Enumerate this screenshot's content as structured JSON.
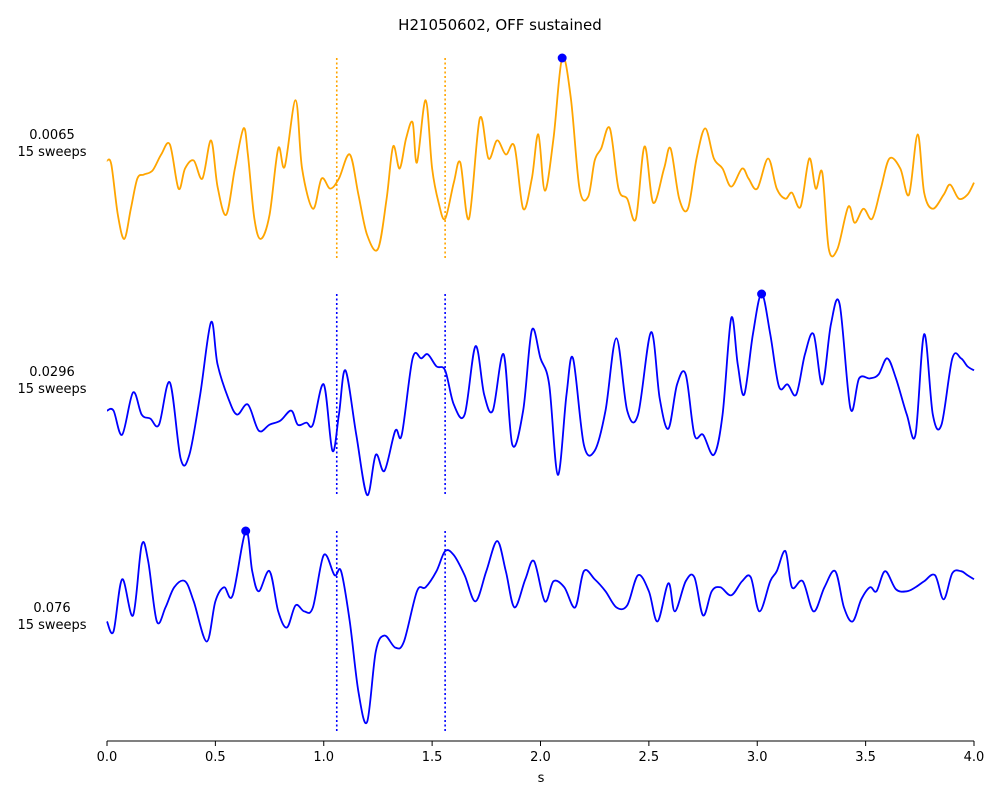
{
  "chart_data": {
    "type": "line",
    "title": "H21050602, OFF sustained",
    "xlabel": "s",
    "xlim": [
      0.0,
      4.0
    ],
    "x_ticks": [
      "0.0",
      "0.5",
      "1.0",
      "1.5",
      "2.0",
      "2.5",
      "3.0",
      "3.5",
      "4.0"
    ],
    "markers": [
      1.06,
      1.56
    ],
    "grid": false,
    "legend": "none",
    "series": [
      {
        "label_value": "0.0065",
        "label_sweeps": "15 sweeps",
        "color": "#ffa500",
        "peak": {
          "x": 2.1,
          "y": 1.0
        },
        "points": [
          [
            0.0,
            0.49
          ],
          [
            0.02,
            0.47
          ],
          [
            0.05,
            0.22
          ],
          [
            0.08,
            0.1
          ],
          [
            0.11,
            0.25
          ],
          [
            0.14,
            0.4
          ],
          [
            0.17,
            0.42
          ],
          [
            0.21,
            0.44
          ],
          [
            0.25,
            0.52
          ],
          [
            0.29,
            0.57
          ],
          [
            0.33,
            0.35
          ],
          [
            0.36,
            0.45
          ],
          [
            0.4,
            0.49
          ],
          [
            0.44,
            0.4
          ],
          [
            0.48,
            0.59
          ],
          [
            0.51,
            0.36
          ],
          [
            0.55,
            0.22
          ],
          [
            0.59,
            0.45
          ],
          [
            0.63,
            0.65
          ],
          [
            0.65,
            0.52
          ],
          [
            0.68,
            0.2
          ],
          [
            0.71,
            0.1
          ],
          [
            0.75,
            0.22
          ],
          [
            0.79,
            0.55
          ],
          [
            0.82,
            0.46
          ],
          [
            0.87,
            0.79
          ],
          [
            0.9,
            0.45
          ],
          [
            0.95,
            0.25
          ],
          [
            0.99,
            0.4
          ],
          [
            1.03,
            0.35
          ],
          [
            1.07,
            0.4
          ],
          [
            1.12,
            0.52
          ],
          [
            1.16,
            0.32
          ],
          [
            1.2,
            0.12
          ],
          [
            1.25,
            0.05
          ],
          [
            1.29,
            0.3
          ],
          [
            1.32,
            0.56
          ],
          [
            1.35,
            0.45
          ],
          [
            1.38,
            0.6
          ],
          [
            1.41,
            0.68
          ],
          [
            1.43,
            0.48
          ],
          [
            1.47,
            0.79
          ],
          [
            1.5,
            0.45
          ],
          [
            1.53,
            0.28
          ],
          [
            1.56,
            0.2
          ],
          [
            1.6,
            0.38
          ],
          [
            1.63,
            0.48
          ],
          [
            1.67,
            0.2
          ],
          [
            1.72,
            0.7
          ],
          [
            1.76,
            0.5
          ],
          [
            1.8,
            0.59
          ],
          [
            1.84,
            0.52
          ],
          [
            1.88,
            0.56
          ],
          [
            1.92,
            0.25
          ],
          [
            1.96,
            0.4
          ],
          [
            1.99,
            0.62
          ],
          [
            2.02,
            0.34
          ],
          [
            2.06,
            0.6
          ],
          [
            2.1,
            1.0
          ],
          [
            2.14,
            0.8
          ],
          [
            2.18,
            0.35
          ],
          [
            2.22,
            0.31
          ],
          [
            2.25,
            0.49
          ],
          [
            2.28,
            0.55
          ],
          [
            2.32,
            0.65
          ],
          [
            2.36,
            0.35
          ],
          [
            2.4,
            0.3
          ],
          [
            2.44,
            0.2
          ],
          [
            2.48,
            0.56
          ],
          [
            2.52,
            0.28
          ],
          [
            2.57,
            0.45
          ],
          [
            2.6,
            0.55
          ],
          [
            2.64,
            0.3
          ],
          [
            2.68,
            0.25
          ],
          [
            2.72,
            0.5
          ],
          [
            2.76,
            0.65
          ],
          [
            2.8,
            0.5
          ],
          [
            2.84,
            0.45
          ],
          [
            2.88,
            0.36
          ],
          [
            2.93,
            0.45
          ],
          [
            2.96,
            0.4
          ],
          [
            3.0,
            0.35
          ],
          [
            3.05,
            0.5
          ],
          [
            3.09,
            0.35
          ],
          [
            3.13,
            0.3
          ],
          [
            3.16,
            0.33
          ],
          [
            3.2,
            0.26
          ],
          [
            3.24,
            0.5
          ],
          [
            3.27,
            0.35
          ],
          [
            3.3,
            0.43
          ],
          [
            3.33,
            0.05
          ],
          [
            3.37,
            0.05
          ],
          [
            3.42,
            0.26
          ],
          [
            3.45,
            0.18
          ],
          [
            3.49,
            0.25
          ],
          [
            3.53,
            0.2
          ],
          [
            3.57,
            0.35
          ],
          [
            3.61,
            0.5
          ],
          [
            3.66,
            0.45
          ],
          [
            3.7,
            0.32
          ],
          [
            3.74,
            0.62
          ],
          [
            3.77,
            0.33
          ],
          [
            3.81,
            0.25
          ],
          [
            3.86,
            0.32
          ],
          [
            3.89,
            0.37
          ],
          [
            3.93,
            0.3
          ],
          [
            3.97,
            0.32
          ],
          [
            4.0,
            0.38
          ]
        ]
      },
      {
        "label_value": "0.0296",
        "label_sweeps": "15 sweeps",
        "color": "#0000ff",
        "peak": {
          "x": 3.02,
          "y": 1.0
        },
        "points": [
          [
            0.0,
            0.42
          ],
          [
            0.03,
            0.42
          ],
          [
            0.07,
            0.3
          ],
          [
            0.12,
            0.51
          ],
          [
            0.16,
            0.4
          ],
          [
            0.2,
            0.38
          ],
          [
            0.24,
            0.35
          ],
          [
            0.29,
            0.56
          ],
          [
            0.34,
            0.18
          ],
          [
            0.38,
            0.2
          ],
          [
            0.43,
            0.5
          ],
          [
            0.48,
            0.86
          ],
          [
            0.51,
            0.65
          ],
          [
            0.56,
            0.48
          ],
          [
            0.6,
            0.4
          ],
          [
            0.65,
            0.45
          ],
          [
            0.7,
            0.32
          ],
          [
            0.75,
            0.35
          ],
          [
            0.8,
            0.37
          ],
          [
            0.85,
            0.42
          ],
          [
            0.88,
            0.35
          ],
          [
            0.92,
            0.36
          ],
          [
            0.95,
            0.35
          ],
          [
            1.0,
            0.55
          ],
          [
            1.04,
            0.22
          ],
          [
            1.07,
            0.4
          ],
          [
            1.1,
            0.62
          ],
          [
            1.15,
            0.3
          ],
          [
            1.2,
            0.0
          ],
          [
            1.24,
            0.2
          ],
          [
            1.28,
            0.12
          ],
          [
            1.33,
            0.32
          ],
          [
            1.36,
            0.3
          ],
          [
            1.41,
            0.68
          ],
          [
            1.45,
            0.68
          ],
          [
            1.48,
            0.7
          ],
          [
            1.52,
            0.64
          ],
          [
            1.56,
            0.62
          ],
          [
            1.6,
            0.45
          ],
          [
            1.65,
            0.4
          ],
          [
            1.7,
            0.74
          ],
          [
            1.74,
            0.5
          ],
          [
            1.78,
            0.42
          ],
          [
            1.83,
            0.7
          ],
          [
            1.87,
            0.25
          ],
          [
            1.92,
            0.42
          ],
          [
            1.96,
            0.82
          ],
          [
            2.0,
            0.68
          ],
          [
            2.04,
            0.55
          ],
          [
            2.08,
            0.1
          ],
          [
            2.12,
            0.5
          ],
          [
            2.15,
            0.68
          ],
          [
            2.2,
            0.25
          ],
          [
            2.25,
            0.22
          ],
          [
            2.3,
            0.42
          ],
          [
            2.35,
            0.78
          ],
          [
            2.4,
            0.42
          ],
          [
            2.45,
            0.4
          ],
          [
            2.51,
            0.81
          ],
          [
            2.55,
            0.48
          ],
          [
            2.59,
            0.33
          ],
          [
            2.63,
            0.55
          ],
          [
            2.67,
            0.6
          ],
          [
            2.71,
            0.3
          ],
          [
            2.75,
            0.3
          ],
          [
            2.8,
            0.2
          ],
          [
            2.84,
            0.4
          ],
          [
            2.88,
            0.88
          ],
          [
            2.91,
            0.65
          ],
          [
            2.94,
            0.5
          ],
          [
            2.98,
            0.8
          ],
          [
            3.02,
            1.0
          ],
          [
            3.06,
            0.8
          ],
          [
            3.1,
            0.54
          ],
          [
            3.14,
            0.55
          ],
          [
            3.18,
            0.5
          ],
          [
            3.22,
            0.7
          ],
          [
            3.26,
            0.8
          ],
          [
            3.3,
            0.55
          ],
          [
            3.34,
            0.85
          ],
          [
            3.38,
            0.95
          ],
          [
            3.43,
            0.43
          ],
          [
            3.47,
            0.58
          ],
          [
            3.52,
            0.58
          ],
          [
            3.56,
            0.6
          ],
          [
            3.6,
            0.68
          ],
          [
            3.64,
            0.58
          ],
          [
            3.69,
            0.4
          ],
          [
            3.73,
            0.3
          ],
          [
            3.77,
            0.8
          ],
          [
            3.81,
            0.4
          ],
          [
            3.85,
            0.35
          ],
          [
            3.9,
            0.68
          ],
          [
            3.94,
            0.68
          ],
          [
            3.97,
            0.64
          ],
          [
            4.0,
            0.62
          ]
        ]
      },
      {
        "label_value": "0.076",
        "label_sweeps": "15 sweeps",
        "color": "#0000ff",
        "peak": {
          "x": 0.64,
          "y": 1.0
        },
        "points": [
          [
            0.0,
            0.55
          ],
          [
            0.03,
            0.5
          ],
          [
            0.07,
            0.76
          ],
          [
            0.12,
            0.58
          ],
          [
            0.16,
            0.93
          ],
          [
            0.19,
            0.85
          ],
          [
            0.23,
            0.55
          ],
          [
            0.27,
            0.62
          ],
          [
            0.31,
            0.72
          ],
          [
            0.36,
            0.75
          ],
          [
            0.4,
            0.65
          ],
          [
            0.46,
            0.45
          ],
          [
            0.5,
            0.65
          ],
          [
            0.54,
            0.72
          ],
          [
            0.58,
            0.68
          ],
          [
            0.64,
            1.0
          ],
          [
            0.67,
            0.8
          ],
          [
            0.7,
            0.7
          ],
          [
            0.75,
            0.8
          ],
          [
            0.79,
            0.6
          ],
          [
            0.83,
            0.52
          ],
          [
            0.87,
            0.63
          ],
          [
            0.91,
            0.6
          ],
          [
            0.95,
            0.62
          ],
          [
            1.0,
            0.88
          ],
          [
            1.05,
            0.78
          ],
          [
            1.08,
            0.8
          ],
          [
            1.12,
            0.55
          ],
          [
            1.16,
            0.2
          ],
          [
            1.2,
            0.05
          ],
          [
            1.24,
            0.4
          ],
          [
            1.28,
            0.48
          ],
          [
            1.33,
            0.42
          ],
          [
            1.37,
            0.45
          ],
          [
            1.43,
            0.7
          ],
          [
            1.47,
            0.72
          ],
          [
            1.52,
            0.8
          ],
          [
            1.56,
            0.9
          ],
          [
            1.6,
            0.88
          ],
          [
            1.65,
            0.78
          ],
          [
            1.7,
            0.65
          ],
          [
            1.75,
            0.8
          ],
          [
            1.8,
            0.95
          ],
          [
            1.84,
            0.8
          ],
          [
            1.88,
            0.62
          ],
          [
            1.93,
            0.76
          ],
          [
            1.97,
            0.85
          ],
          [
            2.02,
            0.65
          ],
          [
            2.06,
            0.75
          ],
          [
            2.11,
            0.72
          ],
          [
            2.16,
            0.62
          ],
          [
            2.2,
            0.8
          ],
          [
            2.25,
            0.76
          ],
          [
            2.3,
            0.7
          ],
          [
            2.35,
            0.62
          ],
          [
            2.4,
            0.63
          ],
          [
            2.45,
            0.78
          ],
          [
            2.5,
            0.7
          ],
          [
            2.54,
            0.55
          ],
          [
            2.59,
            0.74
          ],
          [
            2.62,
            0.6
          ],
          [
            2.67,
            0.75
          ],
          [
            2.71,
            0.77
          ],
          [
            2.75,
            0.58
          ],
          [
            2.79,
            0.7
          ],
          [
            2.83,
            0.72
          ],
          [
            2.88,
            0.68
          ],
          [
            2.93,
            0.75
          ],
          [
            2.97,
            0.77
          ],
          [
            3.01,
            0.6
          ],
          [
            3.06,
            0.75
          ],
          [
            3.09,
            0.8
          ],
          [
            3.13,
            0.9
          ],
          [
            3.16,
            0.72
          ],
          [
            3.21,
            0.75
          ],
          [
            3.26,
            0.6
          ],
          [
            3.31,
            0.72
          ],
          [
            3.36,
            0.8
          ],
          [
            3.4,
            0.62
          ],
          [
            3.44,
            0.55
          ],
          [
            3.48,
            0.66
          ],
          [
            3.52,
            0.72
          ],
          [
            3.55,
            0.7
          ],
          [
            3.59,
            0.8
          ],
          [
            3.64,
            0.71
          ],
          [
            3.69,
            0.7
          ],
          [
            3.73,
            0.72
          ],
          [
            3.77,
            0.75
          ],
          [
            3.82,
            0.78
          ],
          [
            3.86,
            0.66
          ],
          [
            3.9,
            0.79
          ],
          [
            3.94,
            0.8
          ],
          [
            3.97,
            0.78
          ],
          [
            4.0,
            0.76
          ]
        ]
      }
    ]
  }
}
